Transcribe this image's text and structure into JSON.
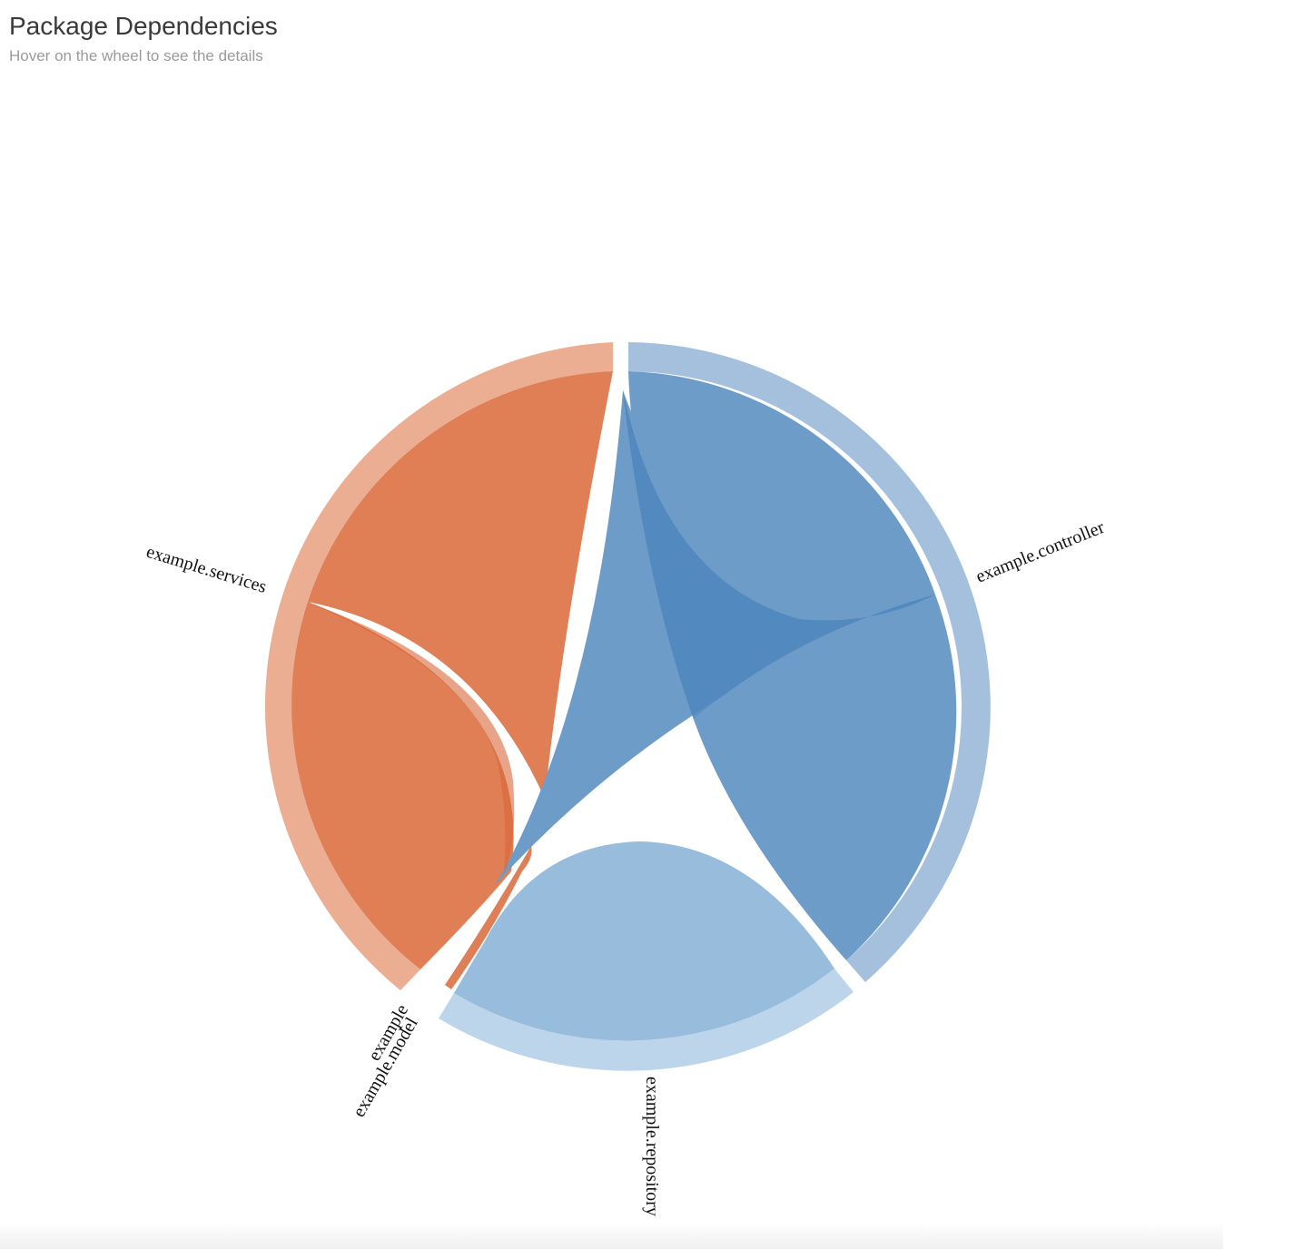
{
  "header": {
    "title": "Package Dependencies",
    "subtitle": "Hover on the wheel to see the details"
  },
  "wheel": {
    "colors": {
      "services": "#e07e55",
      "services_ring": "#ecae93",
      "controller": "#6d9cc8",
      "controller_ring": "#a4c0dc",
      "controller_overlap": "#4f87bd",
      "repository": "#98bcdc",
      "repository_ring": "#bdd5ea",
      "model": "#d9683a"
    },
    "groups": [
      {
        "id": "services",
        "label": "example.services"
      },
      {
        "id": "model",
        "label": "example",
        "label2": "example.model"
      },
      {
        "id": "repository",
        "label": "example.repository"
      },
      {
        "id": "controller",
        "label": "example.controller"
      }
    ]
  }
}
